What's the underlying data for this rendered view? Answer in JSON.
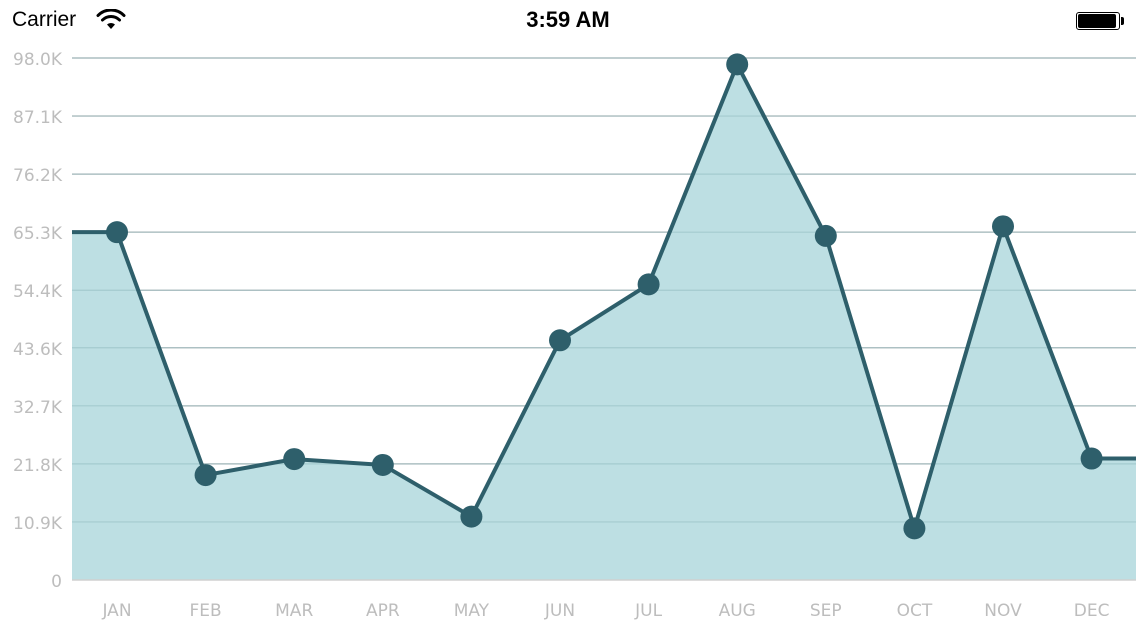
{
  "status_bar": {
    "carrier": "Carrier",
    "time": "3:59 AM",
    "icons": [
      "wifi-icon",
      "battery-icon"
    ]
  },
  "colors": {
    "line": "#2e5f6b",
    "fill": "#bddfe3",
    "grid": "#c8c8c8",
    "tick_label": "#bdbdbd",
    "axis": "#d0d0d0"
  },
  "chart_data": {
    "type": "area",
    "categories": [
      "JAN",
      "FEB",
      "MAR",
      "APR",
      "MAY",
      "JUN",
      "JUL",
      "AUG",
      "SEP",
      "OCT",
      "NOV",
      "DEC"
    ],
    "series": [
      {
        "values": [
          65300,
          19700,
          22700,
          21600,
          11900,
          45000,
          55500,
          96800,
          64600,
          9700,
          66400,
          22800
        ]
      }
    ],
    "ylim": [
      0,
      98000
    ],
    "yticks": [
      0,
      10900,
      21800,
      32700,
      43600,
      54400,
      65300,
      76200,
      87100,
      98000
    ],
    "ytick_labels": [
      "0",
      "10.9K",
      "21.8K",
      "32.7K",
      "43.6K",
      "54.4K",
      "65.3K",
      "76.2K",
      "87.1K",
      "98.0K"
    ],
    "grid": true,
    "title": "",
    "xlabel": "",
    "ylabel": ""
  }
}
